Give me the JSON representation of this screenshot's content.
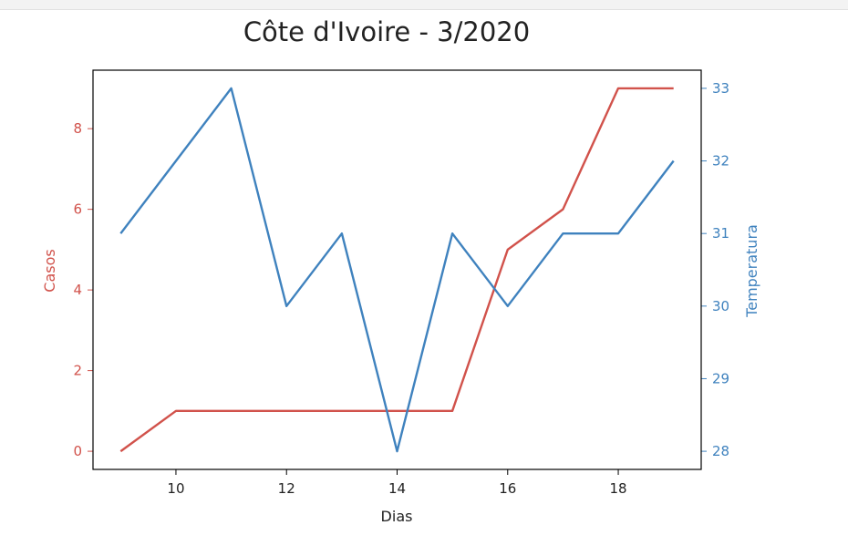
{
  "chart_data": {
    "type": "line",
    "title": "Côte d'Ivoire - 3/2020",
    "xlabel": "Dias",
    "ylabel_left": "Casos",
    "ylabel_right": "Temperatura",
    "x": [
      9,
      10,
      11,
      12,
      13,
      14,
      15,
      16,
      17,
      18,
      19
    ],
    "xlim": [
      8.5,
      19.5
    ],
    "x_ticks": [
      "10",
      "12",
      "14",
      "16",
      "18"
    ],
    "y_left_ticks": [
      "0",
      "2",
      "4",
      "6",
      "8"
    ],
    "y_right_ticks": [
      "28",
      "29",
      "30",
      "31",
      "32",
      "33"
    ],
    "ylim_left": [
      -0.45,
      9.45
    ],
    "ylim_right": [
      27.75,
      33.25
    ],
    "series": [
      {
        "name": "Casos",
        "axis": "left",
        "color": "#d1524b",
        "values": [
          0,
          1,
          1,
          1,
          1,
          1,
          1,
          5,
          6,
          9,
          9
        ]
      },
      {
        "name": "Temperatura",
        "axis": "right",
        "color": "#3f82be",
        "values": [
          31,
          32,
          33,
          30,
          31,
          28,
          31,
          30,
          31,
          31,
          32
        ]
      }
    ],
    "grid": false,
    "legend": "none"
  }
}
